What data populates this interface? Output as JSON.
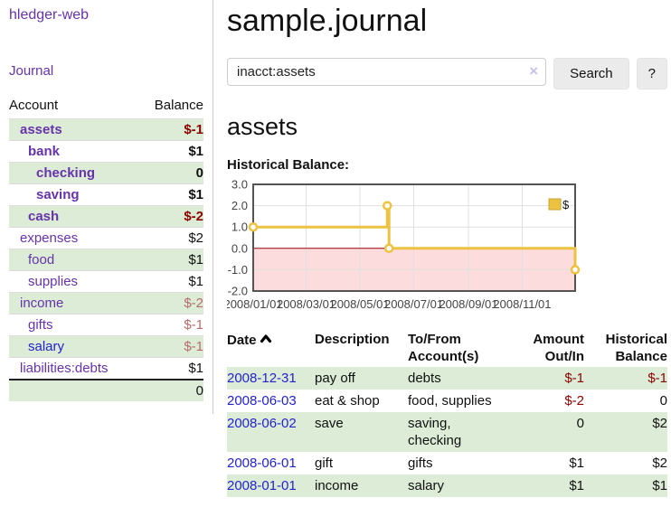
{
  "sidebar": {
    "brand": "hledger-web",
    "journal_link": "Journal",
    "accounts": {
      "headers": {
        "account": "Account",
        "balance": "Balance"
      },
      "rows": [
        {
          "name": "assets",
          "balance": "$-1",
          "cls": "name ind1 em",
          "bcls": "bal em neg"
        },
        {
          "name": "bank",
          "balance": "$1",
          "cls": "name ind2 em",
          "bcls": "bal em"
        },
        {
          "name": "checking",
          "balance": "0",
          "cls": "name ind3 em",
          "bcls": "bal em"
        },
        {
          "name": "saving",
          "balance": "$1",
          "cls": "name ind3 em",
          "bcls": "bal em"
        },
        {
          "name": "cash",
          "balance": "$-2",
          "cls": "name ind2 em",
          "bcls": "bal em neg"
        },
        {
          "name": "expenses",
          "balance": "$2",
          "cls": "name ind1",
          "bcls": "bal"
        },
        {
          "name": "food",
          "balance": "$1",
          "cls": "name ind2",
          "bcls": "bal"
        },
        {
          "name": "supplies",
          "balance": "$1",
          "cls": "name ind2",
          "bcls": "bal"
        },
        {
          "name": "income",
          "balance": "$-2",
          "cls": "name ind1",
          "bcls": "bal rose"
        },
        {
          "name": "gifts",
          "balance": "$-1",
          "cls": "name ind2",
          "bcls": "bal rose"
        },
        {
          "name": "salary",
          "balance": "$-1",
          "cls": "name ind2 blue",
          "bcls": "bal rose"
        },
        {
          "name": "liabilities:debts",
          "balance": "$1",
          "cls": "name ind1",
          "bcls": "bal"
        }
      ],
      "total": "0"
    }
  },
  "main": {
    "title": "sample.journal",
    "search": {
      "value": "inacct:assets",
      "clear_icon": "×",
      "button": "Search",
      "help_button": "?"
    },
    "account_heading": "assets",
    "chart_label": "Historical Balance:",
    "register": {
      "headers": {
        "date": "Date",
        "description": "Description",
        "accounts": "To/From Account(s)",
        "amount": "Amount Out/In",
        "balance": "Historical Balance"
      },
      "rows": [
        {
          "date": "2008-12-31",
          "description": "pay off",
          "accounts": "debts",
          "amount": "$-1",
          "acls": "num neg",
          "balance": "$-1",
          "bcls": "num neg"
        },
        {
          "date": "2008-06-03",
          "description": "eat & shop",
          "accounts": "food, supplies",
          "amount": "$-2",
          "acls": "num neg",
          "balance": "0",
          "bcls": "num"
        },
        {
          "date": "2008-06-02",
          "description": "save",
          "accounts": "saving, checking",
          "amount": "0",
          "acls": "num",
          "balance": "$2",
          "bcls": "num"
        },
        {
          "date": "2008-06-01",
          "description": "gift",
          "accounts": "gifts",
          "amount": "$1",
          "acls": "num",
          "balance": "$2",
          "bcls": "num"
        },
        {
          "date": "2008-01-01",
          "description": "income",
          "accounts": "salary",
          "amount": "$1",
          "acls": "num",
          "balance": "$1",
          "bcls": "num"
        }
      ]
    }
  },
  "chart_data": {
    "type": "line",
    "title": "Historical Balance",
    "series": [
      {
        "name": "$",
        "color": "#edc240",
        "step": true,
        "points": [
          [
            "2008-01-01",
            1
          ],
          [
            "2008-06-01",
            2
          ],
          [
            "2008-06-03",
            0
          ],
          [
            "2008-12-31",
            -1
          ]
        ]
      }
    ],
    "xrange": [
      "2008-01-01",
      "2008-12-31"
    ],
    "ylim": [
      -2,
      3
    ],
    "yticks": [
      "3.0",
      "2.0",
      "1.0",
      "0.0",
      "-1.0",
      "-2.0"
    ],
    "xticks": [
      "2008/01/01",
      "2008/03/01",
      "2008/05/01",
      "2008/07/01",
      "2008/09/01",
      "2008/11/01"
    ],
    "grid": true,
    "legend_position": "top-right",
    "legend_label": "$",
    "negative_region_color": "#fcdcdc",
    "zero_line_color": "#990000",
    "border_color": "#545454",
    "grid_color": "#e0e0e0",
    "tick_label_color": "#444444"
  }
}
